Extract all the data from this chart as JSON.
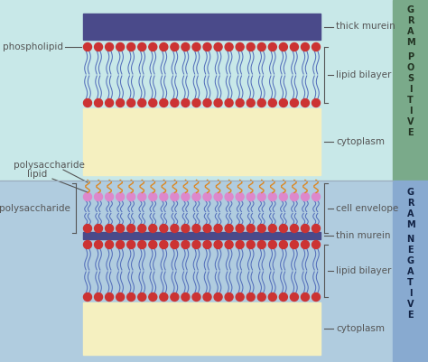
{
  "bg_top": "#c8e8e8",
  "bg_bottom": "#b0ccdf",
  "sidebar_top": "#7aaa8a",
  "sidebar_bottom": "#88aad0",
  "murein_color": "#4a4a8a",
  "lipid_tail_color": "#5570bb",
  "head_color_red": "#cc3333",
  "head_color_pink": "#dd88cc",
  "cytoplasm_color": "#f5f0c0",
  "lps_tail_color": "#dd8822",
  "annotation_color": "#555555",
  "label_phospholipid": "phospholipid",
  "label_thick_murein": "thick murein",
  "label_lipid_bilayer": "lipid bilayer",
  "label_cytoplasm": "cytoplasm",
  "label_polysaccharide": "polysaccharide",
  "label_lipid": "lipid",
  "label_lps": "lipopolysaccharide",
  "label_cell_envelope": "cell envelope",
  "label_thin_murein": "thin murein",
  "label_lipid_bilayer2": "lipid bilayer",
  "label_cytoplasm2": "cytoplasm",
  "fig_w": 4.74,
  "fig_h": 4.01,
  "dpi": 100
}
